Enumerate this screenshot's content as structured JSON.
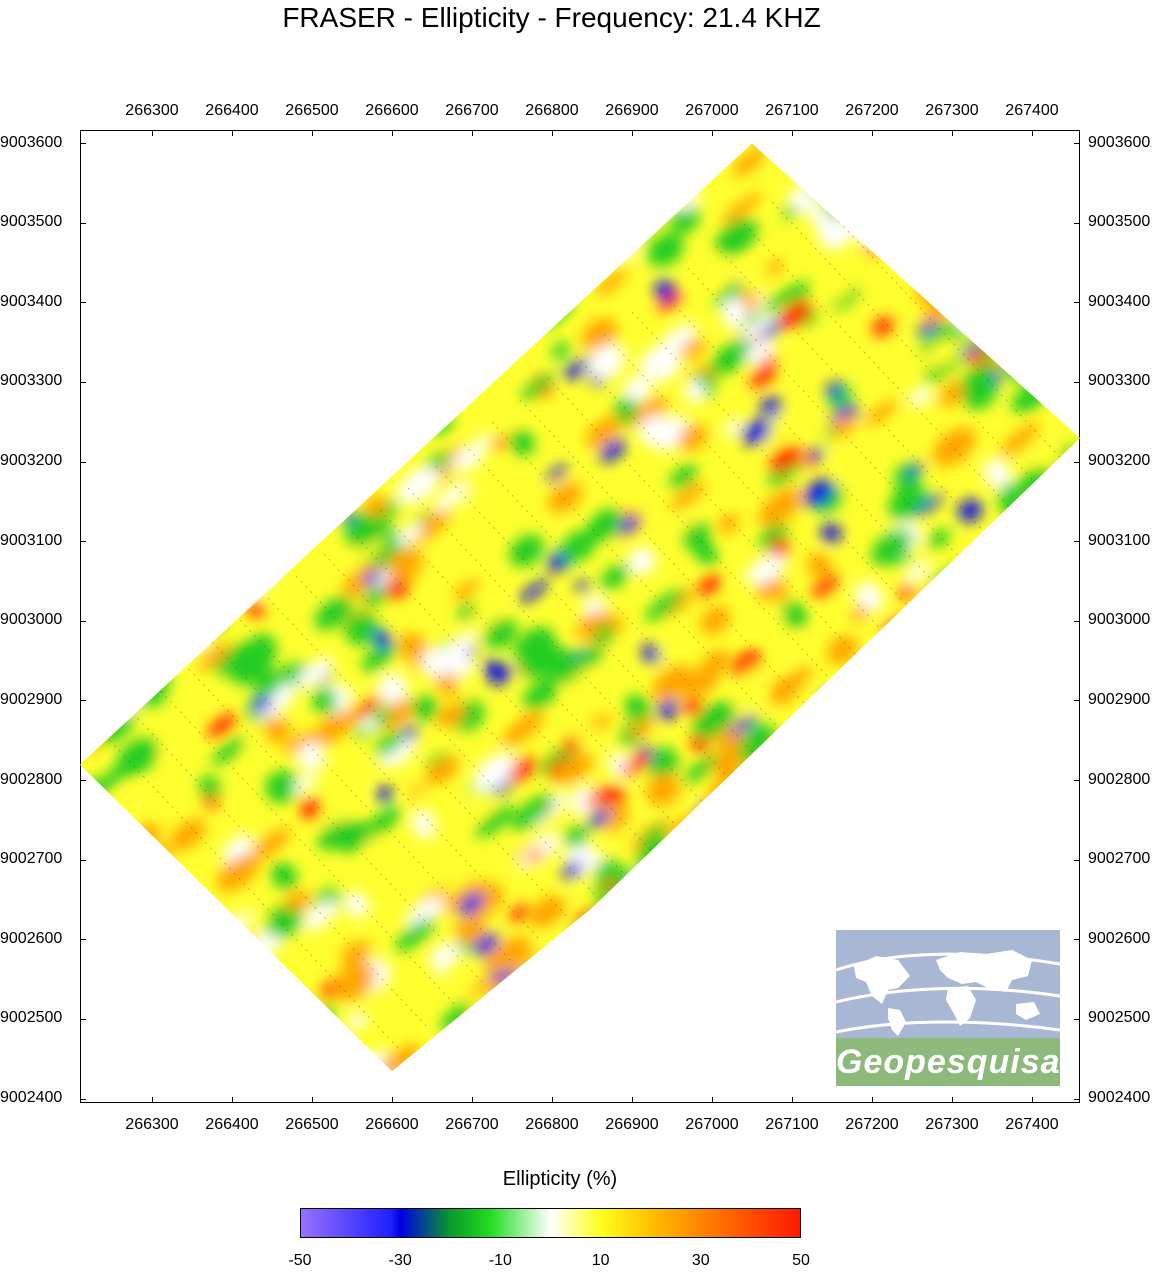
{
  "title": "FRASER - Ellipticity - Frequency: 21.4 KHZ",
  "map": {
    "x_ticks": [
      "266300",
      "266400",
      "266500",
      "266600",
      "266700",
      "266800",
      "266900",
      "267000",
      "267100",
      "267200",
      "267300",
      "267400"
    ],
    "y_ticks": [
      "9003600",
      "9003500",
      "9003400",
      "9003300",
      "9003200",
      "9003100",
      "9003000",
      "9002900",
      "9002800",
      "9002700",
      "9002600",
      "9002500",
      "9002400"
    ],
    "x_range": [
      266210,
      267460
    ],
    "y_range": [
      9002395,
      9003617
    ],
    "survey_corners_easting_northing": [
      [
        266210,
        9002820
      ],
      [
        266600,
        9002435
      ],
      [
        266850,
        9002640
      ],
      [
        267460,
        9003230
      ],
      [
        267050,
        9003600
      ]
    ],
    "colors": {
      "blue": "#1010e0",
      "green": "#22cc22",
      "yellow": "#ffff30",
      "orange": "#ffa500",
      "red": "#ff2a00",
      "white": "#ffffff"
    }
  },
  "legend": {
    "title": "Ellipticity (%)",
    "ticks": [
      "-50",
      "-30",
      "-10",
      "10",
      "30",
      "50"
    ],
    "min": -50,
    "max": 50
  },
  "logo": {
    "text": "Geopesquisa",
    "icon": "world-map-icon"
  }
}
